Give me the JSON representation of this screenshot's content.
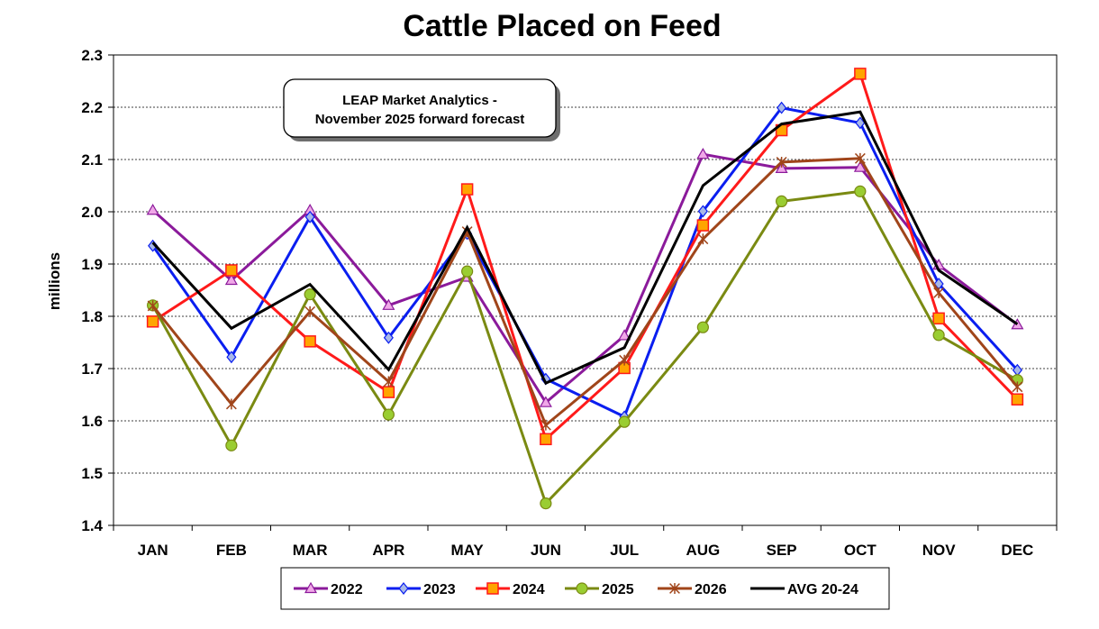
{
  "chart_data": {
    "type": "line",
    "title": "Cattle Placed on Feed",
    "xlabel": "",
    "ylabel": "millions",
    "ylim": [
      1.4,
      2.3
    ],
    "ytick_step": 0.1,
    "grid": "horizontal-dashed",
    "legend_position": "bottom",
    "annotation": [
      "LEAP Market Analytics -",
      "November 2025 forward forecast"
    ],
    "categories": [
      "JAN",
      "FEB",
      "MAR",
      "APR",
      "MAY",
      "JUN",
      "JUL",
      "AUG",
      "SEP",
      "OCT",
      "NOV",
      "DEC"
    ],
    "series": [
      {
        "name": "2022",
        "color": "#8B1A9B",
        "marker": "triangle",
        "marker_fill": "#F0A8E8",
        "values": [
          2.003,
          1.869,
          2.003,
          1.821,
          1.875,
          1.635,
          1.763,
          2.11,
          2.083,
          2.085,
          1.898,
          1.784
        ]
      },
      {
        "name": "2023",
        "color": "#0A1EF0",
        "marker": "diamond",
        "marker_fill": "#A8B8E8",
        "values": [
          1.935,
          1.722,
          1.99,
          1.759,
          1.958,
          1.68,
          1.608,
          2.001,
          2.199,
          2.17,
          1.862,
          1.697
        ]
      },
      {
        "name": "2024",
        "color": "#FF1A1A",
        "marker": "square",
        "marker_fill": "#FFA500",
        "values": [
          1.79,
          1.888,
          1.752,
          1.655,
          2.043,
          1.565,
          1.701,
          1.974,
          2.156,
          2.264,
          1.796,
          1.641
        ]
      },
      {
        "name": "2025",
        "color": "#7A8A12",
        "marker": "circle",
        "marker_fill": "#9ACD32",
        "values": [
          1.821,
          1.553,
          1.842,
          1.612,
          1.886,
          1.442,
          1.598,
          1.779,
          2.02,
          2.039,
          1.764,
          1.678
        ]
      },
      {
        "name": "2026",
        "color": "#A0451A",
        "marker": "star",
        "marker_fill": "#A0451A",
        "values": [
          1.82,
          1.632,
          1.809,
          1.675,
          1.962,
          1.592,
          1.716,
          1.948,
          2.095,
          2.102,
          1.845,
          1.665
        ]
      },
      {
        "name": "AVG 20-24",
        "color": "#000000",
        "marker": "none",
        "marker_fill": "#000000",
        "values": [
          1.941,
          1.777,
          1.861,
          1.698,
          1.97,
          1.672,
          1.74,
          2.05,
          2.168,
          2.191,
          1.888,
          1.785
        ]
      }
    ]
  }
}
